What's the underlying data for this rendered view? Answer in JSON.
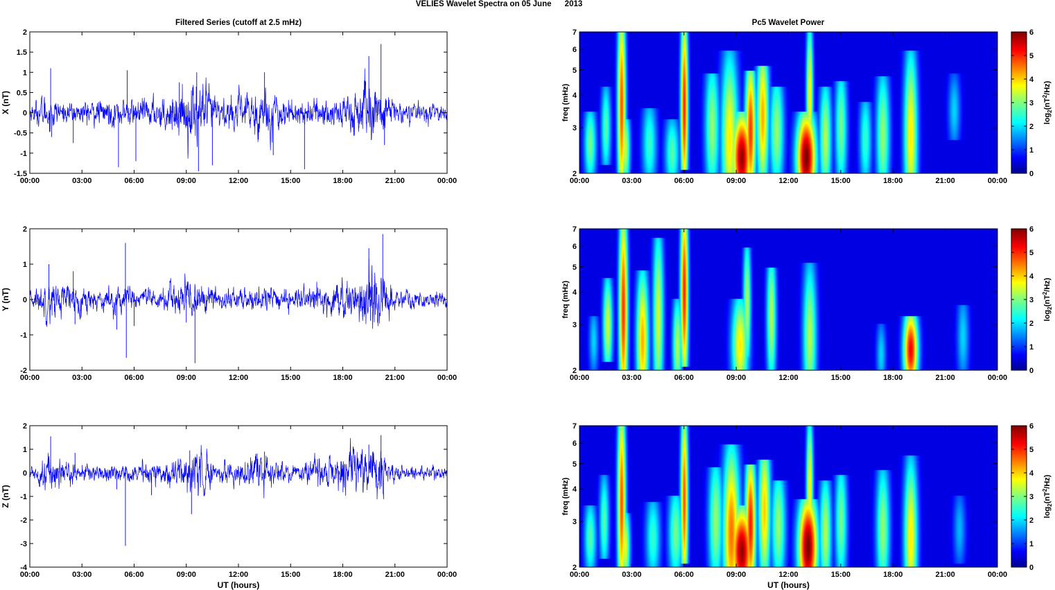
{
  "figure": {
    "title": "VELIES Wavelet Spectra on 05 June      2013",
    "left_column_title": "Filtered Series (cutoff at 2.5 mHz)",
    "right_column_title": "Pc5 Wavelet Power",
    "x_axis_label": "UT (hours)"
  },
  "chart_data": [
    {
      "type": "line",
      "panel": "X",
      "ylabel": "X (nT)",
      "xlabel": "",
      "x_ticks": [
        "00:00",
        "03:00",
        "06:00",
        "09:00",
        "12:00",
        "15:00",
        "18:00",
        "21:00",
        "00:00"
      ],
      "x_range_hours": [
        0,
        24
      ],
      "ylim": [
        -1.5,
        2
      ],
      "y_ticks": [
        "-1.5",
        "-1",
        "-0.5",
        "0",
        "0.5",
        "1",
        "1.5",
        "2"
      ],
      "y_tick_values": [
        -1.5,
        -1,
        -0.5,
        0,
        0.5,
        1,
        1.5,
        2
      ],
      "color": "#0000ff",
      "activity_envelope": [
        {
          "t": 0.0,
          "a": 0.1
        },
        {
          "t": 1.0,
          "a": 0.25
        },
        {
          "t": 2.0,
          "a": 0.12
        },
        {
          "t": 3.0,
          "a": 0.15
        },
        {
          "t": 5.0,
          "a": 0.18
        },
        {
          "t": 6.0,
          "a": 0.16
        },
        {
          "t": 8.0,
          "a": 0.22
        },
        {
          "t": 9.5,
          "a": 0.45
        },
        {
          "t": 11.0,
          "a": 0.18
        },
        {
          "t": 13.5,
          "a": 0.35
        },
        {
          "t": 15.0,
          "a": 0.15
        },
        {
          "t": 17.0,
          "a": 0.18
        },
        {
          "t": 18.5,
          "a": 0.32
        },
        {
          "t": 20.0,
          "a": 0.4
        },
        {
          "t": 21.0,
          "a": 0.14
        },
        {
          "t": 24.0,
          "a": 0.1
        }
      ],
      "spikes": [
        {
          "t": 1.2,
          "v": 1.1
        },
        {
          "t": 1.25,
          "v": -0.6
        },
        {
          "t": 2.5,
          "v": -0.75
        },
        {
          "t": 5.1,
          "v": -1.35
        },
        {
          "t": 5.6,
          "v": 1.05
        },
        {
          "t": 6.1,
          "v": -1.2
        },
        {
          "t": 8.6,
          "v": 0.75
        },
        {
          "t": 9.6,
          "v": 1.0
        },
        {
          "t": 9.7,
          "v": -1.45
        },
        {
          "t": 10.5,
          "v": -1.3
        },
        {
          "t": 13.5,
          "v": 1.0
        },
        {
          "t": 14.0,
          "v": -1.05
        },
        {
          "t": 15.8,
          "v": -1.4
        },
        {
          "t": 19.5,
          "v": 1.4
        },
        {
          "t": 20.2,
          "v": 1.7
        },
        {
          "t": 20.4,
          "v": -0.8
        }
      ]
    },
    {
      "type": "line",
      "panel": "Y",
      "ylabel": "Y (nT)",
      "xlabel": "",
      "x_ticks": [
        "00:00",
        "03:00",
        "06:00",
        "09:00",
        "12:00",
        "15:00",
        "18:00",
        "21:00",
        "00:00"
      ],
      "x_range_hours": [
        0,
        24
      ],
      "ylim": [
        -2,
        2
      ],
      "y_ticks": [
        "-2",
        "-1",
        "0",
        "1",
        "2"
      ],
      "y_tick_values": [
        -2,
        -1,
        0,
        1,
        2
      ],
      "color": "#0000ff",
      "activity_envelope": [
        {
          "t": 0.0,
          "a": 0.1
        },
        {
          "t": 1.0,
          "a": 0.3
        },
        {
          "t": 2.5,
          "a": 0.22
        },
        {
          "t": 4.0,
          "a": 0.15
        },
        {
          "t": 5.5,
          "a": 0.22
        },
        {
          "t": 7.0,
          "a": 0.12
        },
        {
          "t": 9.0,
          "a": 0.3
        },
        {
          "t": 11.0,
          "a": 0.14
        },
        {
          "t": 13.5,
          "a": 0.2
        },
        {
          "t": 15.0,
          "a": 0.13
        },
        {
          "t": 18.0,
          "a": 0.25
        },
        {
          "t": 20.0,
          "a": 0.5
        },
        {
          "t": 21.0,
          "a": 0.14
        },
        {
          "t": 24.0,
          "a": 0.1
        }
      ],
      "spikes": [
        {
          "t": 1.1,
          "v": 1.0
        },
        {
          "t": 2.5,
          "v": 0.8
        },
        {
          "t": 2.6,
          "v": -0.7
        },
        {
          "t": 5.0,
          "v": -0.85
        },
        {
          "t": 5.5,
          "v": 1.6
        },
        {
          "t": 5.55,
          "v": -1.65
        },
        {
          "t": 6.0,
          "v": -0.75
        },
        {
          "t": 9.0,
          "v": -0.65
        },
        {
          "t": 9.5,
          "v": -1.8
        },
        {
          "t": 19.5,
          "v": 1.45
        },
        {
          "t": 20.3,
          "v": 1.85
        },
        {
          "t": 19.6,
          "v": -0.6
        }
      ]
    },
    {
      "type": "line",
      "panel": "Z",
      "ylabel": "Z (nT)",
      "xlabel": "UT (hours)",
      "x_ticks": [
        "00:00",
        "03:00",
        "06:00",
        "09:00",
        "12:00",
        "15:00",
        "18:00",
        "21:00",
        "00:00"
      ],
      "x_range_hours": [
        0,
        24
      ],
      "ylim": [
        -4,
        2
      ],
      "y_ticks": [
        "-4",
        "-3",
        "-2",
        "-1",
        "0",
        "1",
        "2"
      ],
      "y_tick_values": [
        -4,
        -3,
        -2,
        -1,
        0,
        1,
        2
      ],
      "color": "#0000ff",
      "activity_envelope": [
        {
          "t": 0.0,
          "a": 0.12
        },
        {
          "t": 1.2,
          "a": 0.45
        },
        {
          "t": 2.5,
          "a": 0.2
        },
        {
          "t": 5.0,
          "a": 0.2
        },
        {
          "t": 6.0,
          "a": 0.18
        },
        {
          "t": 8.5,
          "a": 0.35
        },
        {
          "t": 9.5,
          "a": 0.55
        },
        {
          "t": 11.0,
          "a": 0.2
        },
        {
          "t": 13.5,
          "a": 0.4
        },
        {
          "t": 15.0,
          "a": 0.18
        },
        {
          "t": 18.0,
          "a": 0.45
        },
        {
          "t": 20.0,
          "a": 0.55
        },
        {
          "t": 21.0,
          "a": 0.18
        },
        {
          "t": 24.0,
          "a": 0.12
        }
      ],
      "spikes": [
        {
          "t": 1.2,
          "v": 1.55
        },
        {
          "t": 2.6,
          "v": 0.85
        },
        {
          "t": 5.5,
          "v": -3.1
        },
        {
          "t": 5.0,
          "v": -0.7
        },
        {
          "t": 7.0,
          "v": -0.95
        },
        {
          "t": 9.3,
          "v": -1.75
        },
        {
          "t": 9.2,
          "v": 0.95
        },
        {
          "t": 13.5,
          "v": 0.9
        },
        {
          "t": 19.5,
          "v": 1.2
        },
        {
          "t": 20.2,
          "v": 1.6
        }
      ]
    },
    {
      "type": "heatmap",
      "panel": "X",
      "ylabel": "freq (mHz)",
      "xlabel": "",
      "colorbar_label": "log2(nT²/Hz)",
      "x_ticks": [
        "00:00",
        "03:00",
        "06:00",
        "09:00",
        "12:00",
        "15:00",
        "18:00",
        "21:00",
        "00:00"
      ],
      "x_range_hours": [
        0,
        24
      ],
      "y_scale": "log",
      "ylim_mHz": [
        2,
        7
      ],
      "y_ticks": [
        "2",
        "3",
        "4",
        "5",
        "6",
        "7"
      ],
      "y_tick_values": [
        2,
        3,
        4,
        5,
        6,
        7
      ],
      "color_range": [
        0,
        6
      ],
      "colorbar_ticks": [
        "0",
        "1",
        "2",
        "3",
        "4",
        "5",
        "6"
      ],
      "colormap": "jet",
      "background_value": 0.05,
      "blobs": [
        {
          "t": 0.6,
          "f": 2.6,
          "p": 2.6,
          "w": 0.25,
          "fl": 2.1,
          "fh": 3.2
        },
        {
          "t": 1.5,
          "f": 3.0,
          "p": 2.4,
          "w": 0.2,
          "fl": 2.4,
          "fh": 4.0
        },
        {
          "t": 2.4,
          "f": 3.6,
          "p": 4.6,
          "w": 0.17,
          "fl": 2.0,
          "fh": 7.0
        },
        {
          "t": 2.6,
          "f": 2.5,
          "p": 3.2,
          "w": 0.2,
          "fl": 2.0,
          "fh": 3.0
        },
        {
          "t": 4.0,
          "f": 2.6,
          "p": 2.2,
          "w": 0.3,
          "fl": 2.0,
          "fh": 3.3
        },
        {
          "t": 5.3,
          "f": 2.4,
          "p": 2.4,
          "w": 0.3,
          "fl": 2.0,
          "fh": 3.0
        },
        {
          "t": 6.0,
          "f": 3.6,
          "p": 4.9,
          "w": 0.15,
          "fl": 2.3,
          "fh": 7.0
        },
        {
          "t": 7.6,
          "f": 3.0,
          "p": 2.8,
          "w": 0.3,
          "fl": 2.0,
          "fh": 4.5
        },
        {
          "t": 8.6,
          "f": 2.7,
          "p": 3.6,
          "w": 0.35,
          "fl": 2.0,
          "fh": 5.5
        },
        {
          "t": 9.3,
          "f": 2.3,
          "p": 5.8,
          "w": 0.4,
          "fl": 2.0,
          "fh": 3.2
        },
        {
          "t": 9.8,
          "f": 2.9,
          "p": 4.8,
          "w": 0.22,
          "fl": 2.0,
          "fh": 4.6
        },
        {
          "t": 10.5,
          "f": 3.3,
          "p": 4.0,
          "w": 0.25,
          "fl": 2.0,
          "fh": 4.8
        },
        {
          "t": 11.3,
          "f": 2.9,
          "p": 2.8,
          "w": 0.3,
          "fl": 2.0,
          "fh": 4.0
        },
        {
          "t": 13.0,
          "f": 2.3,
          "p": 6.0,
          "w": 0.4,
          "fl": 2.0,
          "fh": 3.2
        },
        {
          "t": 13.2,
          "f": 4.0,
          "p": 3.6,
          "w": 0.14,
          "fl": 3.0,
          "fh": 7.0
        },
        {
          "t": 14.1,
          "f": 2.7,
          "p": 3.0,
          "w": 0.25,
          "fl": 2.0,
          "fh": 4.0
        },
        {
          "t": 15.0,
          "f": 3.0,
          "p": 2.6,
          "w": 0.25,
          "fl": 2.0,
          "fh": 4.2
        },
        {
          "t": 16.4,
          "f": 2.7,
          "p": 2.2,
          "w": 0.25,
          "fl": 2.0,
          "fh": 3.5
        },
        {
          "t": 17.4,
          "f": 2.8,
          "p": 2.8,
          "w": 0.28,
          "fl": 2.0,
          "fh": 4.4
        },
        {
          "t": 19.0,
          "f": 2.8,
          "p": 3.6,
          "w": 0.28,
          "fl": 2.0,
          "fh": 5.5
        },
        {
          "t": 21.5,
          "f": 3.5,
          "p": 1.6,
          "w": 0.25,
          "fl": 3.0,
          "fh": 4.5
        }
      ]
    },
    {
      "type": "heatmap",
      "panel": "Y",
      "ylabel": "freq (mHz)",
      "xlabel": "",
      "colorbar_label": "log2(nT²/Hz)",
      "x_ticks": [
        "00:00",
        "03:00",
        "06:00",
        "09:00",
        "12:00",
        "15:00",
        "18:00",
        "21:00",
        "00:00"
      ],
      "x_range_hours": [
        0,
        24
      ],
      "y_scale": "log",
      "ylim_mHz": [
        2,
        7
      ],
      "y_ticks": [
        "2",
        "3",
        "4",
        "5",
        "6",
        "7"
      ],
      "y_tick_values": [
        2,
        3,
        4,
        5,
        6,
        7
      ],
      "color_range": [
        0,
        6
      ],
      "colorbar_ticks": [
        "0",
        "1",
        "2",
        "3",
        "4",
        "5",
        "6"
      ],
      "colormap": "jet",
      "background_value": 0.05,
      "blobs": [
        {
          "t": 0.8,
          "f": 2.6,
          "p": 1.6,
          "w": 0.2,
          "fl": 2.1,
          "fh": 3.0
        },
        {
          "t": 1.6,
          "f": 3.0,
          "p": 3.2,
          "w": 0.2,
          "fl": 2.4,
          "fh": 4.2
        },
        {
          "t": 2.5,
          "f": 3.4,
          "p": 4.8,
          "w": 0.18,
          "fl": 2.0,
          "fh": 7.0
        },
        {
          "t": 3.6,
          "f": 2.6,
          "p": 4.0,
          "w": 0.25,
          "fl": 2.0,
          "fh": 4.5
        },
        {
          "t": 4.5,
          "f": 3.2,
          "p": 3.2,
          "w": 0.22,
          "fl": 2.0,
          "fh": 6.0
        },
        {
          "t": 5.6,
          "f": 2.5,
          "p": 3.0,
          "w": 0.2,
          "fl": 2.0,
          "fh": 3.5
        },
        {
          "t": 6.0,
          "f": 4.0,
          "p": 4.9,
          "w": 0.16,
          "fl": 2.3,
          "fh": 7.0
        },
        {
          "t": 9.2,
          "f": 2.5,
          "p": 3.6,
          "w": 0.35,
          "fl": 2.0,
          "fh": 3.5
        },
        {
          "t": 9.6,
          "f": 3.6,
          "p": 3.0,
          "w": 0.16,
          "fl": 2.5,
          "fh": 5.5
        },
        {
          "t": 11.0,
          "f": 3.2,
          "p": 3.0,
          "w": 0.2,
          "fl": 2.0,
          "fh": 4.6
        },
        {
          "t": 13.2,
          "f": 2.7,
          "p": 3.0,
          "w": 0.28,
          "fl": 2.0,
          "fh": 4.8
        },
        {
          "t": 17.3,
          "f": 2.3,
          "p": 1.6,
          "w": 0.2,
          "fl": 2.0,
          "fh": 2.8
        },
        {
          "t": 19.0,
          "f": 2.4,
          "p": 5.2,
          "w": 0.3,
          "fl": 2.0,
          "fh": 3.0
        },
        {
          "t": 22.0,
          "f": 2.7,
          "p": 1.6,
          "w": 0.25,
          "fl": 2.0,
          "fh": 3.3
        }
      ]
    },
    {
      "type": "heatmap",
      "panel": "Z",
      "ylabel": "freq (mHz)",
      "xlabel": "UT (hours)",
      "colorbar_label": "log2(nT²/Hz)",
      "x_ticks": [
        "00:00",
        "03:00",
        "06:00",
        "09:00",
        "12:00",
        "15:00",
        "18:00",
        "21:00",
        "00:00"
      ],
      "x_range_hours": [
        0,
        24
      ],
      "y_scale": "log",
      "ylim_mHz": [
        2,
        7
      ],
      "y_ticks": [
        "2",
        "3",
        "4",
        "5",
        "6",
        "7"
      ],
      "y_tick_values": [
        2,
        3,
        4,
        5,
        6,
        7
      ],
      "color_range": [
        0,
        6
      ],
      "colorbar_ticks": [
        "0",
        "1",
        "2",
        "3",
        "4",
        "5",
        "6"
      ],
      "colormap": "jet",
      "background_value": 0.05,
      "blobs": [
        {
          "t": 0.6,
          "f": 2.6,
          "p": 2.4,
          "w": 0.25,
          "fl": 2.1,
          "fh": 3.2
        },
        {
          "t": 1.4,
          "f": 3.0,
          "p": 2.4,
          "w": 0.2,
          "fl": 2.4,
          "fh": 4.2
        },
        {
          "t": 2.4,
          "f": 3.5,
          "p": 4.6,
          "w": 0.17,
          "fl": 2.0,
          "fh": 7.0
        },
        {
          "t": 2.6,
          "f": 2.4,
          "p": 3.4,
          "w": 0.2,
          "fl": 2.0,
          "fh": 3.0
        },
        {
          "t": 4.2,
          "f": 2.6,
          "p": 2.2,
          "w": 0.3,
          "fl": 2.0,
          "fh": 3.3
        },
        {
          "t": 5.5,
          "f": 2.7,
          "p": 2.6,
          "w": 0.3,
          "fl": 2.0,
          "fh": 3.5
        },
        {
          "t": 6.0,
          "f": 3.6,
          "p": 4.6,
          "w": 0.15,
          "fl": 2.3,
          "fh": 7.0
        },
        {
          "t": 7.8,
          "f": 3.0,
          "p": 2.8,
          "w": 0.3,
          "fl": 2.0,
          "fh": 4.5
        },
        {
          "t": 8.7,
          "f": 2.7,
          "p": 4.4,
          "w": 0.35,
          "fl": 2.0,
          "fh": 5.5
        },
        {
          "t": 9.3,
          "f": 2.3,
          "p": 5.8,
          "w": 0.45,
          "fl": 2.0,
          "fh": 3.2
        },
        {
          "t": 9.8,
          "f": 2.9,
          "p": 5.0,
          "w": 0.22,
          "fl": 2.0,
          "fh": 4.6
        },
        {
          "t": 10.6,
          "f": 3.3,
          "p": 3.8,
          "w": 0.25,
          "fl": 2.0,
          "fh": 4.8
        },
        {
          "t": 11.4,
          "f": 2.9,
          "p": 2.8,
          "w": 0.3,
          "fl": 2.0,
          "fh": 4.0
        },
        {
          "t": 13.1,
          "f": 2.4,
          "p": 6.0,
          "w": 0.4,
          "fl": 2.0,
          "fh": 3.4
        },
        {
          "t": 13.2,
          "f": 4.0,
          "p": 3.6,
          "w": 0.14,
          "fl": 3.0,
          "fh": 7.0
        },
        {
          "t": 14.1,
          "f": 2.7,
          "p": 3.0,
          "w": 0.25,
          "fl": 2.0,
          "fh": 4.0
        },
        {
          "t": 15.0,
          "f": 3.0,
          "p": 2.6,
          "w": 0.25,
          "fl": 2.0,
          "fh": 4.2
        },
        {
          "t": 17.4,
          "f": 2.8,
          "p": 2.8,
          "w": 0.28,
          "fl": 2.0,
          "fh": 4.4
        },
        {
          "t": 19.0,
          "f": 2.6,
          "p": 3.6,
          "w": 0.28,
          "fl": 2.0,
          "fh": 5.0
        },
        {
          "t": 21.8,
          "f": 2.8,
          "p": 1.4,
          "w": 0.25,
          "fl": 2.3,
          "fh": 3.5
        }
      ]
    }
  ]
}
